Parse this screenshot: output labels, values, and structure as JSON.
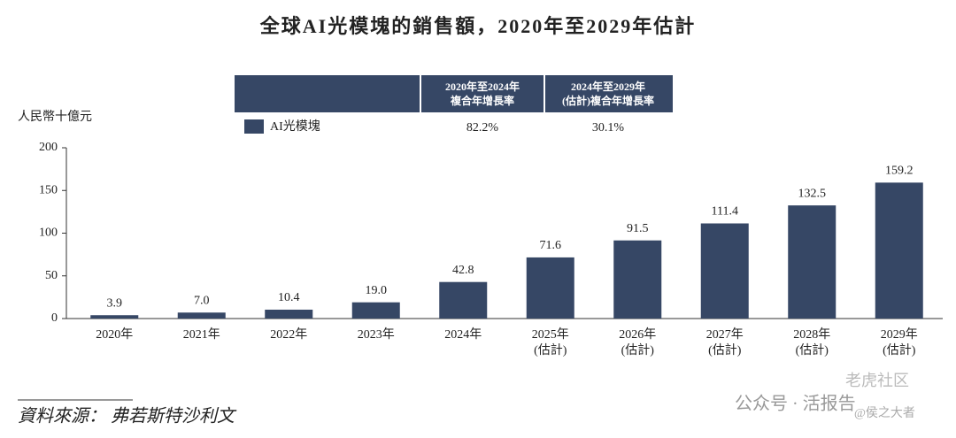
{
  "chart_data": {
    "type": "bar",
    "title": "全球AI光模塊的銷售額，2020年至2029年估計",
    "y_unit_label": "人民幣十億元",
    "categories": [
      [
        "2020年"
      ],
      [
        "2021年"
      ],
      [
        "2022年"
      ],
      [
        "2023年"
      ],
      [
        "2024年"
      ],
      [
        "2025年",
        "(估計)"
      ],
      [
        "2026年",
        "(估計)"
      ],
      [
        "2027年",
        "(估計)"
      ],
      [
        "2028年",
        "(估計)"
      ],
      [
        "2029年",
        "(估計)"
      ]
    ],
    "values": [
      3.9,
      7.0,
      10.4,
      19.0,
      42.8,
      71.6,
      91.5,
      111.4,
      132.5,
      159.2
    ],
    "value_labels": [
      "3.9",
      "7.0",
      "10.4",
      "19.0",
      "42.8",
      "71.6",
      "91.5",
      "111.4",
      "132.5",
      "159.2"
    ],
    "color": "#364765",
    "ylim": [
      0,
      200
    ],
    "yticks": [
      0,
      50,
      100,
      150,
      200
    ],
    "cagr_table": {
      "headers": [
        [
          "2020年至2024年",
          "複合年增長率"
        ],
        [
          "2024年至2029年",
          "(估計)複合年增長率"
        ]
      ],
      "series_name": "AI光模塊",
      "rates": [
        "82.2%",
        "30.1%"
      ]
    },
    "source": "資料來源：  弗若斯特沙利文",
    "watermarks": [
      "公众号 · 活报告",
      "老虎社区",
      "@侯之大者"
    ]
  }
}
